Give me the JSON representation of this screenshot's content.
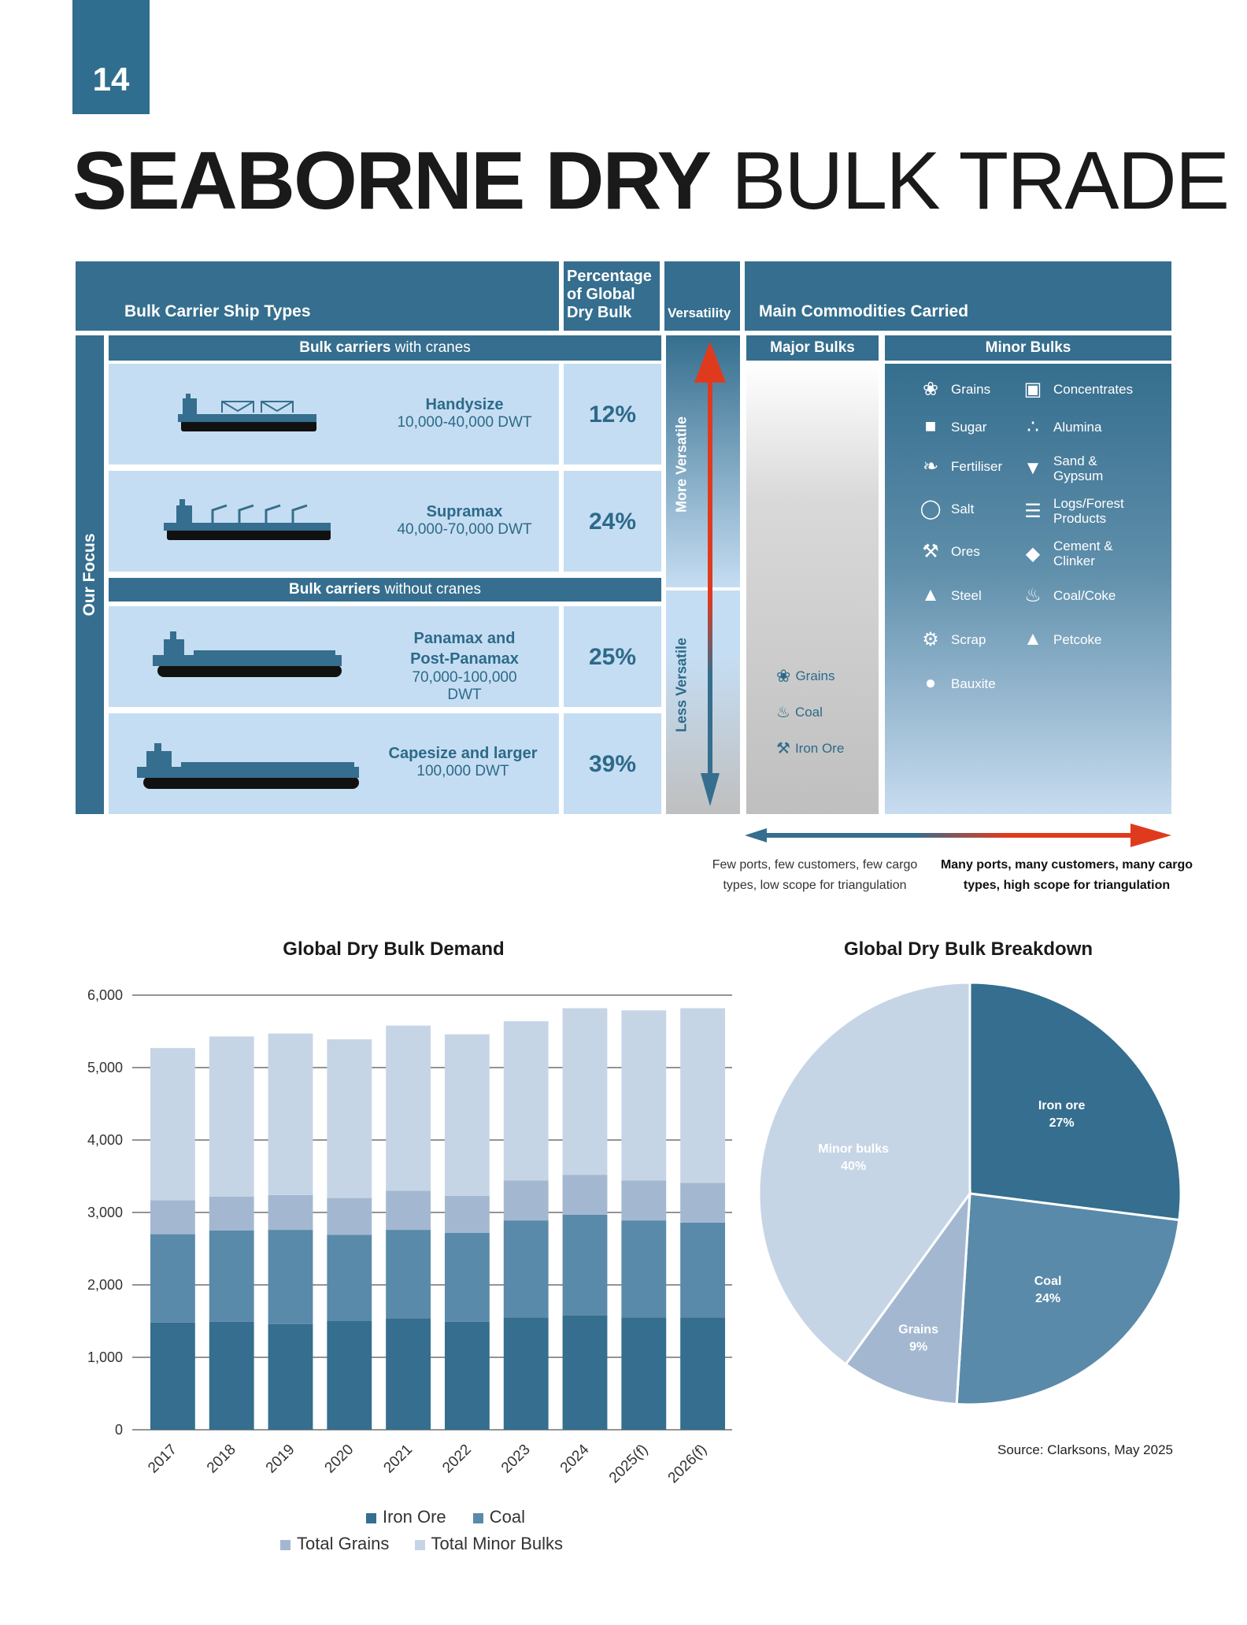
{
  "page_number": "14",
  "title": {
    "bold": "SEABORNE DRY",
    "light": "BULK TRADE"
  },
  "table": {
    "headers": {
      "ship_types": "Bulk Carrier Ship Types",
      "percentage": "Percentage of Global Dry Bulk",
      "versatility": "Versatility",
      "commodities": "Main Commodities Carried"
    },
    "side_label": "Our Focus",
    "with_cranes": {
      "bold": "Bulk carriers",
      "rest": " with cranes"
    },
    "without_cranes": {
      "bold": "Bulk carriers",
      "rest": " without cranes"
    },
    "major_label": "Major Bulks",
    "minor_label": "Minor Bulks",
    "more_versatile": "More Versatile",
    "less_versatile": "Less Versatile",
    "ships": [
      {
        "name": "Handysize",
        "dwt": "10,000-40,000 DWT",
        "pct": "12%",
        "icon": "bulk-ship-with-cranes-icon"
      },
      {
        "name": "Supramax",
        "dwt": "40,000-70,000 DWT",
        "pct": "24%",
        "icon": "bulk-ship-with-cranes-icon"
      },
      {
        "name": "Panamax and Post-Panamax",
        "dwt": "70,000-100,000 DWT",
        "pct": "25%",
        "icon": "bulk-ship-icon"
      },
      {
        "name": "Capesize and larger",
        "dwt": "100,000 DWT",
        "pct": "39%",
        "icon": "bulk-ship-icon"
      }
    ],
    "major_bulks": [
      {
        "label": "Grains",
        "icon": "wheat-icon"
      },
      {
        "label": "Coal",
        "icon": "flame-icon"
      },
      {
        "label": "Iron Ore",
        "icon": "pickaxe-icon"
      }
    ],
    "minor_bulks_left": [
      {
        "label": "Grains",
        "icon": "wheat-icon"
      },
      {
        "label": "Sugar",
        "icon": "sugar-icon"
      },
      {
        "label": "Fertiliser",
        "icon": "leaf-icon"
      },
      {
        "label": "Salt",
        "icon": "salt-icon"
      },
      {
        "label": "Ores",
        "icon": "pickaxe-icon"
      },
      {
        "label": "Steel",
        "icon": "anvil-icon"
      },
      {
        "label": "Scrap",
        "icon": "scrap-icon"
      },
      {
        "label": "Bauxite",
        "icon": "bauxite-icon"
      }
    ],
    "minor_bulks_right": [
      {
        "label": "Concentrates",
        "icon": "cart-icon"
      },
      {
        "label": "Alumina",
        "icon": "granules-icon"
      },
      {
        "label": "Sand & Gypsum",
        "icon": "shovel-icon"
      },
      {
        "label": "Logs/Forest Products",
        "icon": "logs-icon"
      },
      {
        "label": "Cement & Clinker",
        "icon": "trowel-icon"
      },
      {
        "label": "Coal/Coke",
        "icon": "flame-icon"
      },
      {
        "label": "Petcoke",
        "icon": "pile-icon"
      }
    ],
    "scale_left": "Few ports, few customers, few cargo types, low scope for triangulation",
    "scale_right": "Many ports, many customers, many cargo types, high scope for triangulation"
  },
  "colors": {
    "dark": "#356e8e",
    "mid": "#5a8aaa",
    "grain": "#a3b8d0",
    "minor": "#c6d5e6",
    "red": "#e03a1e"
  },
  "source": "Source: Clarksons, May 2025",
  "chart_data": [
    {
      "type": "bar",
      "stacked": true,
      "title": "Global Dry Bulk Demand",
      "categories": [
        "2017",
        "2018",
        "2019",
        "2020",
        "2021",
        "2022",
        "2023",
        "2024",
        "2025(f)",
        "2026(f)"
      ],
      "series": [
        {
          "name": "Iron Ore",
          "values": [
            1480,
            1490,
            1460,
            1500,
            1540,
            1490,
            1550,
            1580,
            1550,
            1550
          ]
        },
        {
          "name": "Coal",
          "values": [
            1220,
            1260,
            1300,
            1190,
            1220,
            1230,
            1340,
            1390,
            1340,
            1310
          ]
        },
        {
          "name": "Total Grains",
          "values": [
            470,
            470,
            480,
            510,
            540,
            510,
            550,
            550,
            550,
            550
          ]
        },
        {
          "name": "Total Minor Bulks",
          "values": [
            2100,
            2210,
            2230,
            2190,
            2280,
            2230,
            2200,
            2300,
            2350,
            2410
          ]
        }
      ],
      "yticks": [
        "0",
        "1,000",
        "2,000",
        "3,000",
        "4,000",
        "5,000",
        "6,000"
      ],
      "ylim": [
        0,
        6000
      ],
      "grid": true,
      "legend": "bottom"
    },
    {
      "type": "pie",
      "title": "Global Dry Bulk Breakdown",
      "slices": [
        {
          "label": "Iron ore",
          "pct": "27%",
          "value": 27
        },
        {
          "label": "Coal",
          "pct": "24%",
          "value": 24
        },
        {
          "label": "Grains",
          "pct": "9%",
          "value": 9
        },
        {
          "label": "Minor bulks",
          "pct": "40%",
          "value": 40
        }
      ]
    }
  ]
}
